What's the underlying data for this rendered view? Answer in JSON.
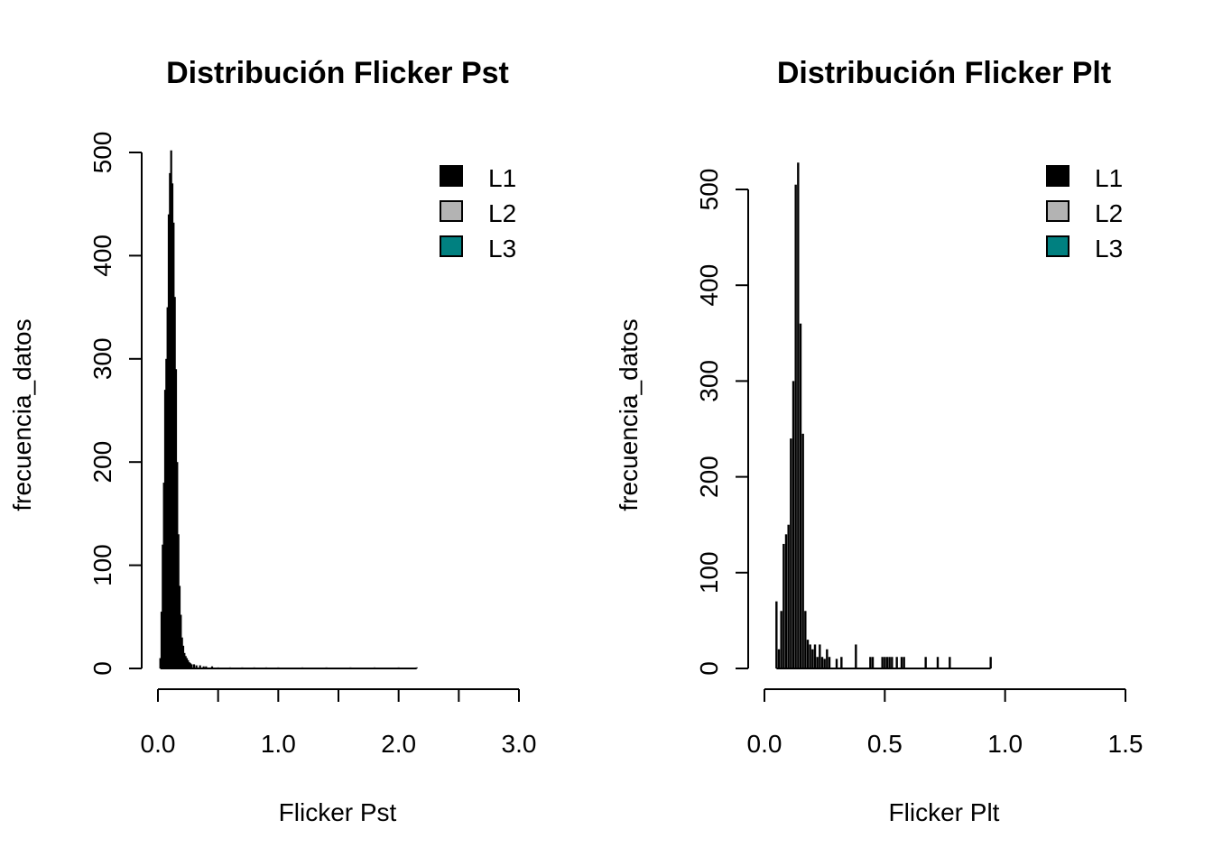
{
  "chart_data": [
    {
      "type": "histogram",
      "title": "Distribución Flicker Pst",
      "xlabel": "Flicker Pst",
      "ylabel": "frecuencia_datos",
      "xlim": [
        0,
        3.0
      ],
      "ylim": [
        0,
        500
      ],
      "x_ticks": [
        "0.0",
        "",
        "1.0",
        "",
        "2.0",
        "",
        "3.0"
      ],
      "x_tick_values": [
        0,
        0.5,
        1.0,
        1.5,
        2.0,
        2.5,
        3.0
      ],
      "y_ticks": [
        "0",
        "100",
        "200",
        "300",
        "400",
        "500"
      ],
      "y_tick_values": [
        0,
        100,
        200,
        300,
        400,
        500
      ],
      "legend_position": "top-right",
      "legend": [
        {
          "label": "L1",
          "color": "#000000"
        },
        {
          "label": "L2",
          "color": "#b3b3b3"
        },
        {
          "label": "L3",
          "color": "#008080"
        }
      ],
      "series": [
        {
          "name": "L1",
          "color": "#000000",
          "x": [
            0.02,
            0.03,
            0.04,
            0.05,
            0.06,
            0.07,
            0.08,
            0.09,
            0.1,
            0.11,
            0.12,
            0.13,
            0.14,
            0.15,
            0.16,
            0.17,
            0.18,
            0.19,
            0.2,
            0.21,
            0.22,
            0.23,
            0.24,
            0.25,
            0.26,
            0.27,
            0.28,
            0.3,
            0.32,
            0.35,
            0.38,
            0.4,
            0.45,
            0.5,
            0.6,
            0.7,
            0.8,
            0.9,
            1.0,
            1.2,
            1.4,
            1.6,
            1.8,
            2.0,
            2.15
          ],
          "values": [
            10,
            55,
            120,
            180,
            270,
            300,
            350,
            440,
            480,
            502,
            470,
            432,
            360,
            290,
            200,
            130,
            80,
            52,
            30,
            22,
            15,
            12,
            10,
            8,
            6,
            5,
            4,
            4,
            3,
            3,
            2,
            2,
            2,
            1,
            1,
            1,
            1,
            1,
            1,
            1,
            1,
            1,
            1,
            1,
            1
          ]
        }
      ]
    },
    {
      "type": "histogram",
      "title": "Distribución Flicker Plt",
      "xlabel": "Flicker Plt",
      "ylabel": "frecuencia_datos",
      "xlim": [
        0,
        1.5
      ],
      "ylim": [
        0,
        500
      ],
      "x_ticks": [
        "0.0",
        "0.5",
        "1.0",
        "1.5"
      ],
      "x_tick_values": [
        0,
        0.5,
        1.0,
        1.5
      ],
      "y_ticks": [
        "0",
        "100",
        "200",
        "300",
        "400",
        "500"
      ],
      "y_tick_values": [
        0,
        100,
        200,
        300,
        400,
        500
      ],
      "legend_position": "top-right",
      "legend": [
        {
          "label": "L1",
          "color": "#000000"
        },
        {
          "label": "L2",
          "color": "#b3b3b3"
        },
        {
          "label": "L3",
          "color": "#008080"
        }
      ],
      "series": [
        {
          "name": "L1",
          "color": "#000000",
          "x": [
            0.05,
            0.06,
            0.07,
            0.08,
            0.09,
            0.1,
            0.11,
            0.12,
            0.13,
            0.14,
            0.15,
            0.16,
            0.17,
            0.18,
            0.19,
            0.2,
            0.21,
            0.22,
            0.23,
            0.24,
            0.25,
            0.26,
            0.27,
            0.3,
            0.32,
            0.38,
            0.44,
            0.45,
            0.49,
            0.5,
            0.51,
            0.52,
            0.53,
            0.55,
            0.57,
            0.58,
            0.67,
            0.72,
            0.77,
            0.94
          ],
          "values": [
            70,
            20,
            60,
            130,
            140,
            150,
            240,
            300,
            505,
            528,
            360,
            245,
            60,
            30,
            25,
            20,
            25,
            12,
            25,
            12,
            10,
            20,
            12,
            10,
            12,
            25,
            12,
            12,
            12,
            12,
            12,
            12,
            12,
            12,
            12,
            12,
            12,
            12,
            12,
            12
          ]
        }
      ]
    }
  ]
}
